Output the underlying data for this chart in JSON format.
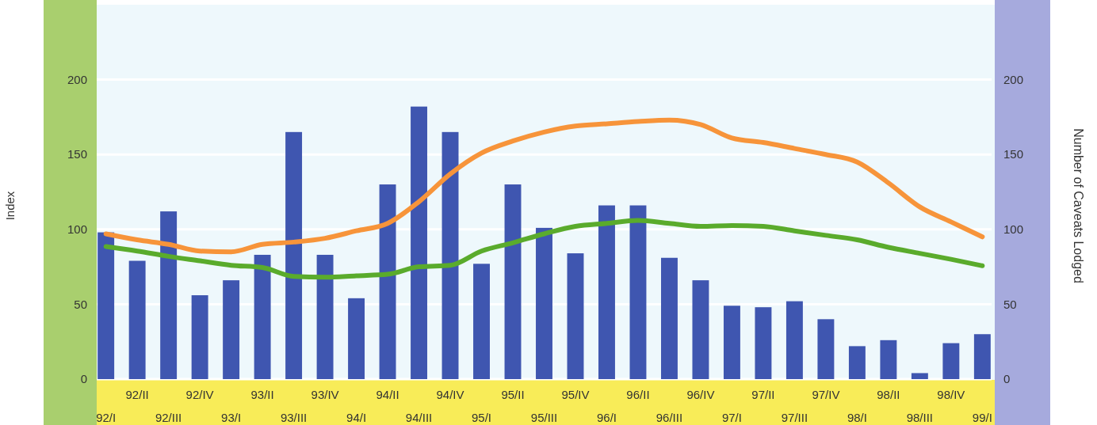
{
  "chart_data": {
    "type": "bar",
    "ylabel": "Index",
    "y2label": "Number of Caveats Lodged",
    "categories": [
      "92/I",
      "92/II",
      "92/III",
      "92/IV",
      "93/I",
      "93/II",
      "93/III",
      "93/IV",
      "94/I",
      "94/II",
      "94/III",
      "94/IV",
      "95/I",
      "95/II",
      "95/III",
      "95/IV",
      "96/I",
      "96/II",
      "96/III",
      "96/IV",
      "97/I",
      "97/II",
      "97/III",
      "97/IV",
      "98/I",
      "98/II",
      "98/III",
      "98/IV",
      "99/I"
    ],
    "series": [
      {
        "color": "#3f56b0",
        "values": [
          98,
          79,
          112,
          56,
          66,
          83,
          165,
          83,
          54,
          130,
          182,
          165,
          77,
          130,
          101,
          84,
          116,
          116,
          81,
          66,
          49,
          48,
          52,
          40,
          22,
          26,
          4,
          24,
          30
        ]
      },
      {
        "type": "line",
        "color": "#f7943a",
        "values": [
          97,
          93,
          90,
          85.5,
          85,
          90,
          91.5,
          94,
          99,
          104,
          118.5,
          137,
          151,
          159,
          165,
          169,
          170.5,
          172,
          173,
          170,
          161,
          158,
          154,
          150,
          145,
          131,
          115,
          105,
          95
        ]
      },
      {
        "type": "line",
        "color": "#5aab2c",
        "values": [
          88.5,
          85.5,
          82,
          79,
          76,
          74.5,
          68.6,
          68,
          69,
          70,
          75,
          76,
          85.5,
          91,
          97,
          102,
          104,
          106,
          104,
          102,
          102.6,
          102,
          99,
          96,
          93,
          88,
          84,
          80,
          75.7
        ]
      }
    ],
    "ylim": [
      0,
      250
    ],
    "yticks": [
      0,
      50,
      100,
      150,
      200
    ],
    "y2lim": [
      0,
      250
    ],
    "y2ticks": [
      0,
      50,
      100,
      150,
      200
    ],
    "grid": "y",
    "marker": "none",
    "line_style": "solid"
  }
}
